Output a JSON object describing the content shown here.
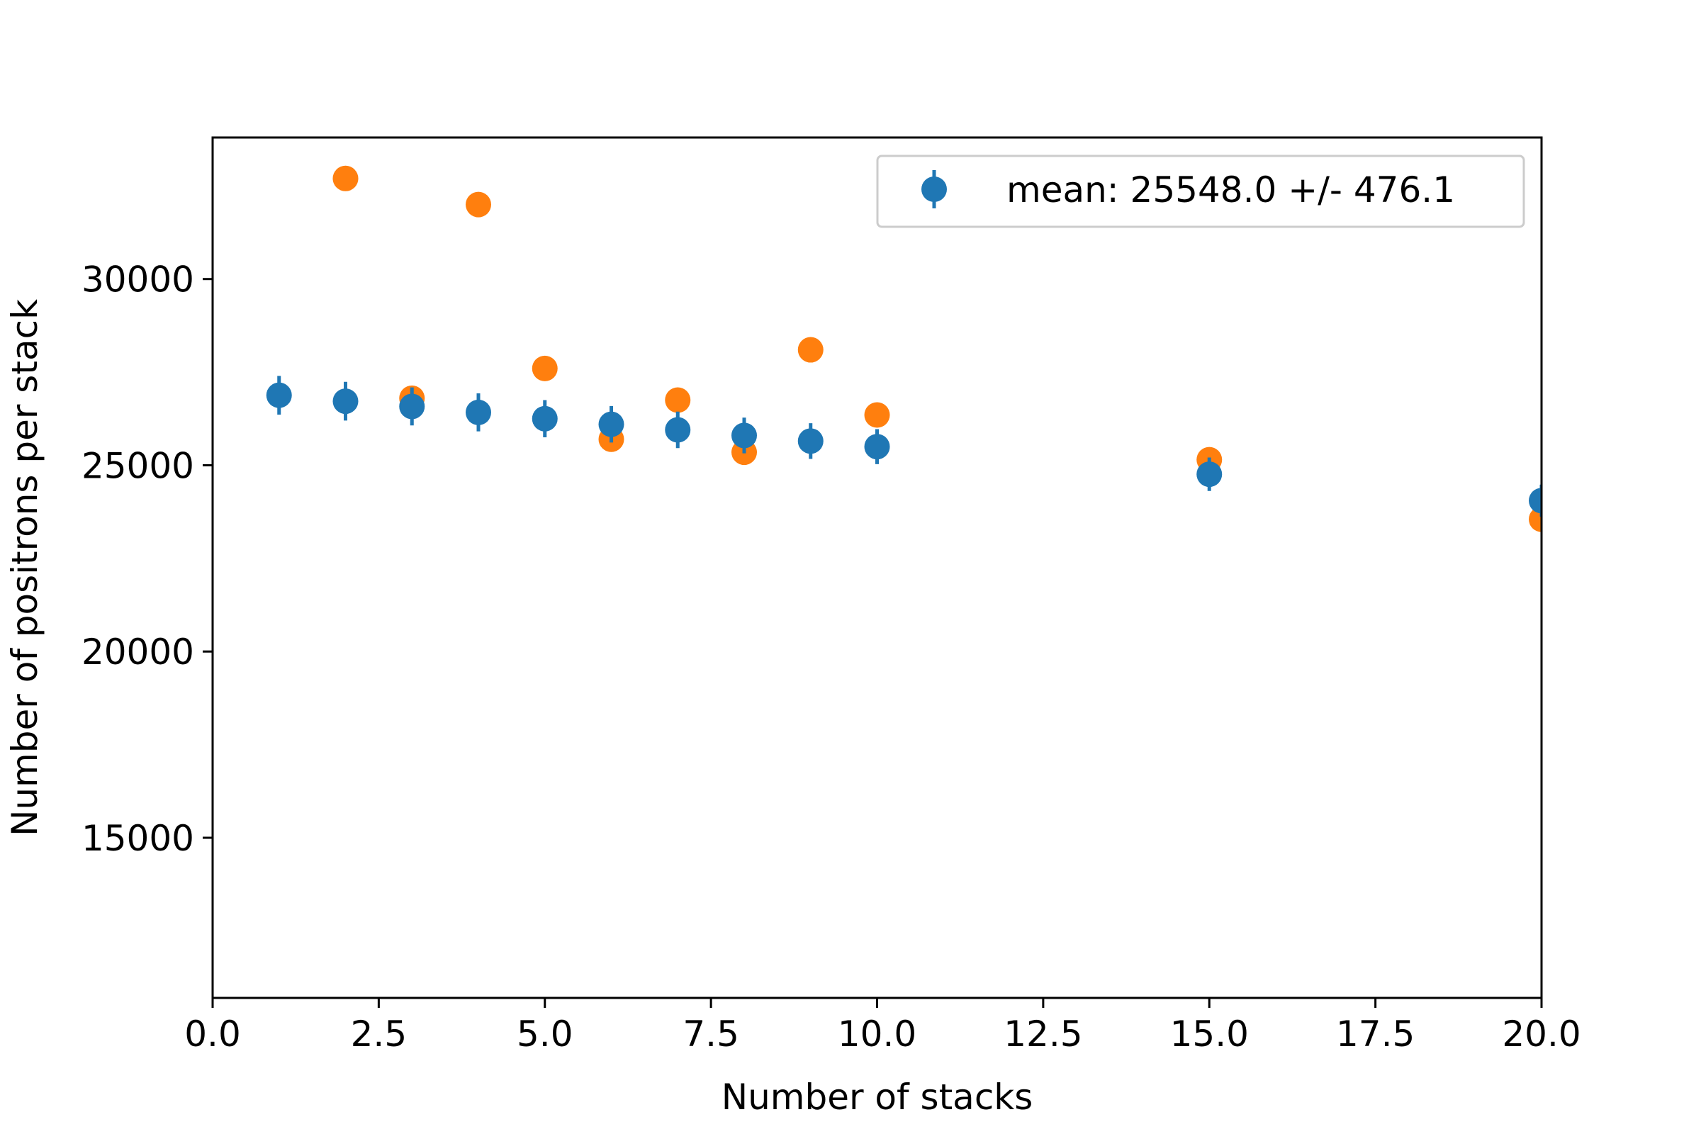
{
  "chart_data": {
    "type": "scatter",
    "title": "",
    "xlabel": "Number of stacks",
    "ylabel": "Number of positrons per stack",
    "xlim": [
      0.0,
      20.0
    ],
    "ylim": [
      10700,
      33800
    ],
    "grid": false,
    "legend_position": "top-right",
    "x_ticks": [
      0.0,
      2.5,
      5.0,
      7.5,
      10.0,
      12.5,
      15.0,
      17.5,
      20.0
    ],
    "x_tick_labels": [
      "0.0",
      "2.5",
      "5.0",
      "7.5",
      "10.0",
      "12.5",
      "15.0",
      "17.5",
      "20.0"
    ],
    "y_ticks": [
      15000,
      20000,
      25000,
      30000
    ],
    "y_tick_labels": [
      "15000",
      "20000",
      "25000",
      "30000"
    ],
    "series": [
      {
        "color": "#ff7f0e",
        "marker": "circle",
        "errorbars": false,
        "x": [
          2,
          3,
          4,
          5,
          6,
          7,
          8,
          9,
          10,
          15,
          20
        ],
        "y": [
          32700,
          26800,
          32000,
          27600,
          25700,
          26750,
          25350,
          28100,
          26350,
          25150,
          23550
        ]
      },
      {
        "name": "mean: 25548.0 +/- 476.1",
        "color": "#1f77b4",
        "marker": "circle",
        "errorbars": true,
        "x": [
          1,
          2,
          3,
          4,
          5,
          6,
          7,
          8,
          9,
          10,
          15,
          20
        ],
        "y": [
          26880,
          26720,
          26580,
          26420,
          26250,
          26100,
          25950,
          25800,
          25650,
          25500,
          24760,
          24050
        ],
        "yerr": [
          520,
          520,
          510,
          510,
          500,
          490,
          490,
          480,
          480,
          470,
          450,
          430
        ]
      }
    ]
  }
}
